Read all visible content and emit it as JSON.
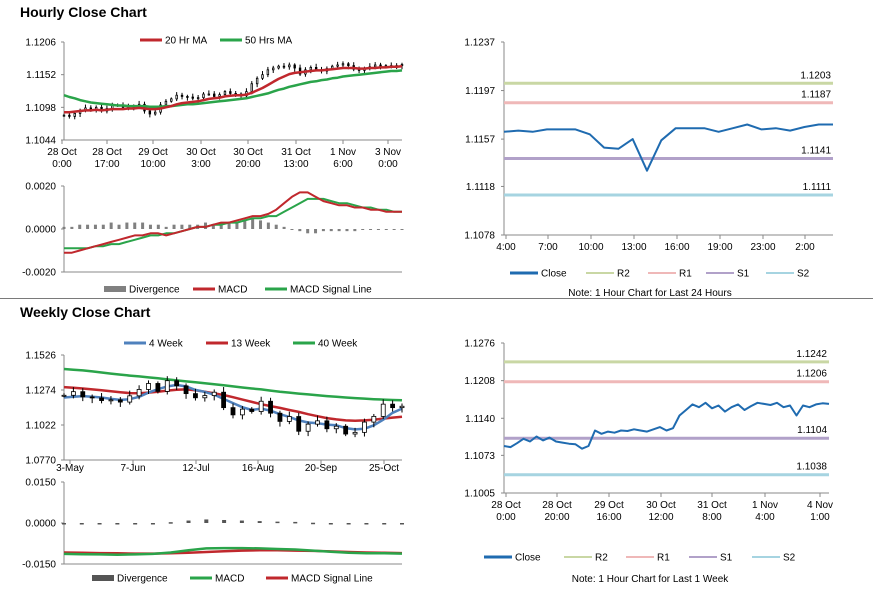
{
  "sections": {
    "hourly_title": "Hourly Close Chart",
    "weekly_title": "Weekly Close Chart"
  },
  "colors": {
    "close": "#1f6bb0",
    "r2": "#c9d7a4",
    "r1": "#efb8b8",
    "s1": "#b1a1c9",
    "s2": "#a6d4e1",
    "ma20": "#c0282d",
    "ma50": "#2aa44a",
    "w4": "#4f81bd",
    "w13": "#c0282d",
    "w40": "#2aa44a",
    "macd": "#c0282d",
    "signal": "#2aa44a",
    "divergence": "#808080",
    "grey_line": "#b0b0b0"
  },
  "chart_data": [
    {
      "id": "hourly_price",
      "type": "candlestick",
      "title": "",
      "xlabel": "",
      "ylabel": "",
      "legend": [
        "20 Hr MA",
        "50 Hrs MA"
      ],
      "y_ticks": [
        "1.1206",
        "1.1152",
        "1.1098",
        "1.1044"
      ],
      "ylim": [
        1.1044,
        1.1206
      ],
      "x_ticks": [
        [
          "28 Oct",
          "0:00"
        ],
        [
          "28 Oct",
          "17:00"
        ],
        [
          "29 Oct",
          "10:00"
        ],
        [
          "30 Oct",
          "3:00"
        ],
        [
          "30 Oct",
          "20:00"
        ],
        [
          "31 Oct",
          "13:00"
        ],
        [
          "1 Nov",
          "6:00"
        ],
        [
          "3 Nov",
          "0:00"
        ]
      ],
      "close": [
        1.1085,
        1.1083,
        1.1088,
        1.1093,
        1.1097,
        1.1095,
        1.1098,
        1.1092,
        1.1096,
        1.1102,
        1.1101,
        1.1098,
        1.11,
        1.1099,
        1.1103,
        1.1092,
        1.1087,
        1.109,
        1.1102,
        1.1108,
        1.1112,
        1.1118,
        1.1116,
        1.1115,
        1.1113,
        1.1114,
        1.112,
        1.112,
        1.1116,
        1.1119,
        1.1124,
        1.1121,
        1.112,
        1.1117,
        1.1124,
        1.1137,
        1.1146,
        1.1152,
        1.116,
        1.1163,
        1.1166,
        1.1165,
        1.1168,
        1.1163,
        1.1153,
        1.116,
        1.1164,
        1.116,
        1.1158,
        1.1162,
        1.1166,
        1.1168,
        1.117,
        1.1167,
        1.1161,
        1.1159,
        1.1162,
        1.1165,
        1.1168,
        1.1166,
        1.1167,
        1.1166,
        1.1167,
        1.1169
      ],
      "ma20": [
        1.109,
        1.109,
        1.1091,
        1.1092,
        1.1093,
        1.1093,
        1.1094,
        1.1093,
        1.1094,
        1.1095,
        1.1095,
        1.1095,
        1.1096,
        1.1096,
        1.1097,
        1.1096,
        1.1095,
        1.1095,
        1.1096,
        1.1098,
        1.11,
        1.1103,
        1.1105,
        1.1106,
        1.1107,
        1.1108,
        1.111,
        1.1112,
        1.1113,
        1.1114,
        1.1116,
        1.1117,
        1.1118,
        1.1118,
        1.1119,
        1.1122,
        1.1126,
        1.113,
        1.1135,
        1.114,
        1.1145,
        1.1149,
        1.1153,
        1.1155,
        1.1156,
        1.1157,
        1.1158,
        1.1159,
        1.1159,
        1.116,
        1.1161,
        1.1162,
        1.1163,
        1.1163,
        1.1163,
        1.1162,
        1.1162,
        1.1163,
        1.1163,
        1.1164,
        1.1164,
        1.1165,
        1.1165,
        1.1166
      ],
      "ma50": [
        1.1118,
        1.1115,
        1.1113,
        1.111,
        1.1108,
        1.1106,
        1.1105,
        1.1104,
        1.1103,
        1.1102,
        1.1101,
        1.1101,
        1.11,
        1.11,
        1.11,
        1.11,
        1.1099,
        1.1099,
        1.1099,
        1.11,
        1.11,
        1.1101,
        1.1102,
        1.1103,
        1.1103,
        1.1104,
        1.1105,
        1.1106,
        1.1107,
        1.1108,
        1.1109,
        1.111,
        1.1111,
        1.1112,
        1.1113,
        1.1115,
        1.1117,
        1.1119,
        1.1121,
        1.1124,
        1.1127,
        1.1129,
        1.1132,
        1.1134,
        1.1136,
        1.1138,
        1.114,
        1.1141,
        1.1143,
        1.1144,
        1.1146,
        1.1147,
        1.1149,
        1.115,
        1.1151,
        1.1152,
        1.1153,
        1.1154,
        1.1155,
        1.1156,
        1.1157,
        1.1158,
        1.1158,
        1.1159
      ]
    },
    {
      "id": "hourly_macd",
      "type": "line",
      "legend": [
        "Divergence",
        "MACD",
        "MACD Signal Line"
      ],
      "y_ticks": [
        "0.0020",
        "0.0000",
        "-0.0020"
      ],
      "ylim": [
        -0.002,
        0.002
      ],
      "macd": [
        -0.0011,
        -0.0011,
        -0.001,
        -0.0009,
        -0.0008,
        -0.0007,
        -0.0006,
        -0.0005,
        -0.0004,
        -0.0003,
        -0.0003,
        -0.0002,
        -0.0002,
        -0.0003,
        -0.0002,
        -0.0001,
        0.0,
        0.0001,
        0.0001,
        0.0002,
        0.0003,
        0.0003,
        0.0004,
        0.0005,
        0.0006,
        0.0006,
        0.0007,
        0.0009,
        0.0012,
        0.0015,
        0.0017,
        0.0017,
        0.0015,
        0.0013,
        0.0012,
        0.0011,
        0.0011,
        0.001,
        0.001,
        0.0009,
        0.0009,
        0.0008,
        0.0008,
        0.0008
      ],
      "signal": [
        -0.0009,
        -0.0009,
        -0.0009,
        -0.0009,
        -0.0008,
        -0.0008,
        -0.0007,
        -0.0007,
        -0.0006,
        -0.0005,
        -0.0004,
        -0.0003,
        -0.0003,
        -0.0002,
        -0.0002,
        -0.0001,
        0.0,
        0.0001,
        0.0001,
        0.0002,
        0.0002,
        0.0003,
        0.0003,
        0.0004,
        0.0005,
        0.0005,
        0.0006,
        0.0006,
        0.0008,
        0.001,
        0.0012,
        0.0014,
        0.0014,
        0.0014,
        0.0013,
        0.0012,
        0.0012,
        0.0011,
        0.001,
        0.001,
        0.0009,
        0.0009,
        0.0008,
        0.0008
      ],
      "divergence": [
        0.0001,
        0.0001,
        0.0002,
        0.0002,
        0.0002,
        0.0002,
        0.0003,
        0.0002,
        0.0003,
        0.0003,
        0.0003,
        0.0002,
        0.0002,
        0.0001,
        0.0002,
        0.0002,
        0.0002,
        0.0002,
        0.0003,
        0.0002,
        0.0003,
        0.0003,
        0.0003,
        0.0004,
        0.0005,
        0.0004,
        0.0003,
        0.0002,
        0.0001,
        0.0,
        -0.0001,
        -0.0002,
        -0.0002,
        -0.0001,
        -0.0001,
        -0.0001,
        -0.0001,
        -0.0001,
        0.0,
        0.0,
        0.0,
        0.0,
        0.0,
        0.0
      ]
    },
    {
      "id": "hourly_24h",
      "type": "line",
      "y_ticks": [
        "1.1237",
        "1.1197",
        "1.1157",
        "1.1118",
        "1.1078"
      ],
      "ylim": [
        1.1078,
        1.1237
      ],
      "x_ticks": [
        "4:00",
        "7:00",
        "10:00",
        "13:00",
        "16:00",
        "19:00",
        "23:00",
        "2:00"
      ],
      "close": [
        1.1163,
        1.1164,
        1.1163,
        1.1165,
        1.1165,
        1.1165,
        1.1161,
        1.115,
        1.1149,
        1.1157,
        1.1131,
        1.1156,
        1.1166,
        1.1166,
        1.1166,
        1.1163,
        1.1166,
        1.1169,
        1.1165,
        1.1166,
        1.1164,
        1.1167,
        1.1169,
        1.1169
      ],
      "levels": {
        "R2": 1.1203,
        "R1": 1.1187,
        "S1": 1.1141,
        "S2": 1.1111
      },
      "level_labels": [
        "1.1203",
        "1.1187",
        "1.1141",
        "1.1111"
      ],
      "legend": [
        "Close",
        "R2",
        "R1",
        "S1",
        "S2"
      ],
      "note": "Note: 1 Hour Chart for Last 24 Hours"
    },
    {
      "id": "weekly_price",
      "type": "candlestick",
      "legend": [
        "4 Week",
        "13 Week",
        "40 Week"
      ],
      "y_ticks": [
        "1.1526",
        "1.1274",
        "1.1022",
        "1.0770"
      ],
      "ylim": [
        1.077,
        1.1526
      ],
      "x_ticks": [
        "3-May",
        "7-Jun",
        "12-Jul",
        "16-Aug",
        "20-Sep",
        "25-Oct"
      ],
      "close": [
        1.1236,
        1.1262,
        1.1224,
        1.1217,
        1.1198,
        1.1203,
        1.1187,
        1.1232,
        1.1278,
        1.1321,
        1.1264,
        1.1341,
        1.1304,
        1.1248,
        1.1218,
        1.1234,
        1.1258,
        1.1147,
        1.1095,
        1.1136,
        1.1119,
        1.1193,
        1.1107,
        1.1048,
        1.1083,
        1.0977,
        1.1028,
        1.1052,
        1.0995,
        1.1013,
        1.0957,
        1.0969,
        1.1043,
        1.1084,
        1.1172,
        1.1147,
        1.1157
      ],
      "w4": [
        1.122,
        1.1225,
        1.123,
        1.1226,
        1.122,
        1.121,
        1.1203,
        1.1208,
        1.1225,
        1.1255,
        1.128,
        1.13,
        1.131,
        1.13,
        1.1275,
        1.126,
        1.124,
        1.121,
        1.118,
        1.115,
        1.113,
        1.114,
        1.1125,
        1.11,
        1.108,
        1.1055,
        1.104,
        1.1035,
        1.1025,
        1.102,
        1.1,
        1.099,
        1.0995,
        1.102,
        1.106,
        1.111,
        1.114
      ],
      "w13": [
        1.1295,
        1.129,
        1.1285,
        1.1278,
        1.1272,
        1.1265,
        1.1258,
        1.1252,
        1.125,
        1.1255,
        1.1262,
        1.127,
        1.1276,
        1.1278,
        1.1272,
        1.1262,
        1.125,
        1.1238,
        1.1222,
        1.1205,
        1.1188,
        1.1172,
        1.1158,
        1.1145,
        1.113,
        1.1116,
        1.11,
        1.1085,
        1.1072,
        1.1062,
        1.1055,
        1.1052,
        1.1055,
        1.106,
        1.1068,
        1.1075,
        1.1082
      ],
      "w40": [
        1.1425,
        1.142,
        1.1415,
        1.1408,
        1.14,
        1.1392,
        1.1385,
        1.1378,
        1.1372,
        1.1365,
        1.1358,
        1.135,
        1.1343,
        1.1336,
        1.133,
        1.1323,
        1.1315,
        1.1308,
        1.13,
        1.1292,
        1.1285,
        1.1278,
        1.127,
        1.1262,
        1.1255,
        1.1248,
        1.1242,
        1.1236,
        1.123,
        1.1225,
        1.122,
        1.1216,
        1.1212,
        1.1208,
        1.1205,
        1.1202,
        1.12
      ]
    },
    {
      "id": "weekly_macd",
      "type": "line",
      "legend": [
        "Divergence",
        "MACD",
        "MACD Signal Line"
      ],
      "y_ticks": [
        "0.0150",
        "0.0000",
        "-0.0150"
      ],
      "ylim": [
        -0.015,
        0.015
      ],
      "macd": [
        -0.0113,
        -0.0114,
        -0.0115,
        -0.0116,
        -0.0115,
        -0.0113,
        -0.0108,
        -0.01,
        -0.0093,
        -0.0092,
        -0.0092,
        -0.0093,
        -0.0095,
        -0.0097,
        -0.0101,
        -0.0105,
        -0.0109,
        -0.0111,
        -0.0111,
        -0.0112
      ],
      "signal": [
        -0.0108,
        -0.0109,
        -0.011,
        -0.0111,
        -0.0112,
        -0.0112,
        -0.0111,
        -0.0109,
        -0.0106,
        -0.0103,
        -0.0101,
        -0.01,
        -0.01,
        -0.0101,
        -0.0102,
        -0.0104,
        -0.0106,
        -0.0108,
        -0.0109,
        -0.011
      ],
      "divergence": [
        -0.0005,
        -0.0005,
        -0.0005,
        -0.0005,
        -0.0003,
        -0.0001,
        0.0003,
        0.0009,
        0.0013,
        0.0011,
        0.0009,
        0.0007,
        0.0005,
        0.0004,
        0.0001,
        -0.0001,
        -0.0003,
        -0.0003,
        -0.0002,
        -0.0002
      ]
    },
    {
      "id": "weekly_hourly",
      "type": "line",
      "y_ticks": [
        "1.1276",
        "1.1208",
        "1.1140",
        "1.1073",
        "1.1005"
      ],
      "ylim": [
        1.1005,
        1.1276
      ],
      "x_ticks": [
        [
          "28 Oct",
          "0:00"
        ],
        [
          "28 Oct",
          "20:00"
        ],
        [
          "29 Oct",
          "16:00"
        ],
        [
          "30 Oct",
          "12:00"
        ],
        [
          "31 Oct",
          "8:00"
        ],
        [
          "1 Nov",
          "4:00"
        ],
        [
          "4 Nov",
          "1:00"
        ]
      ],
      "close": [
        1.109,
        1.1088,
        1.1095,
        1.1103,
        1.1098,
        1.1107,
        1.11,
        1.1105,
        1.1098,
        1.1096,
        1.1094,
        1.1093,
        1.1085,
        1.109,
        1.1118,
        1.1112,
        1.1116,
        1.1114,
        1.1118,
        1.1117,
        1.112,
        1.1118,
        1.1116,
        1.112,
        1.1124,
        1.1118,
        1.1122,
        1.1145,
        1.1155,
        1.1165,
        1.116,
        1.1168,
        1.1158,
        1.1163,
        1.1152,
        1.116,
        1.1165,
        1.1155,
        1.1162,
        1.1168,
        1.1166,
        1.1164,
        1.1168,
        1.116,
        1.1163,
        1.1145,
        1.1163,
        1.116,
        1.1165,
        1.1167,
        1.1166
      ],
      "levels": {
        "R2": 1.1242,
        "R1": 1.1206,
        "S1": 1.1104,
        "S2": 1.1038
      },
      "level_labels": [
        "1.1242",
        "1.1206",
        "1.1104",
        "1.1038"
      ],
      "legend": [
        "Close",
        "R2",
        "R1",
        "S1",
        "S2"
      ],
      "note": "Note: 1 Hour Chart for Last 1 Week"
    }
  ]
}
